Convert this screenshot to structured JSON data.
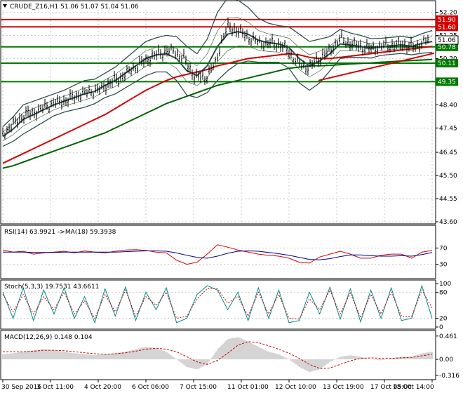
{
  "chart_data": {
    "type": "line",
    "symbol_header": "CRUDE_Z16,H1  51.06 51.07 51.04 51.06",
    "price_panel": {
      "ylim": [
        43.6,
        52.3
      ],
      "y_ticks": [
        "52.20",
        "51.25",
        "50.30",
        "48.40",
        "47.45",
        "46.45",
        "45.50",
        "44.55",
        "43.60"
      ],
      "current_price": "51.06",
      "levels": [
        {
          "value": 51.9,
          "label": "51.90",
          "color": "#d40000"
        },
        {
          "value": 51.6,
          "label": "51.60",
          "color": "#d40000"
        },
        {
          "value": 50.78,
          "label": "50.78",
          "color": "#007a00"
        },
        {
          "value": 50.11,
          "label": "50.11",
          "color": "#007a00"
        },
        {
          "value": 49.35,
          "label": "49.35",
          "color": "#007a00"
        }
      ],
      "trendlines": [
        {
          "x": [
            445,
            608
          ],
          "y": [
            49.4,
            50.52
          ],
          "color": "#d40000"
        }
      ],
      "close_series": {
        "x": [
          0,
          15,
          30,
          45,
          60,
          75,
          90,
          105,
          120,
          135,
          150,
          165,
          180,
          195,
          210,
          225,
          240,
          255,
          270,
          285,
          300,
          310,
          318,
          325,
          340,
          355,
          370,
          385,
          400,
          415,
          430,
          445,
          460,
          475,
          490,
          505,
          520,
          535,
          550,
          565,
          580,
          595,
          605
        ],
        "y": [
          47.2,
          47.6,
          48.0,
          48.1,
          48.3,
          48.5,
          48.6,
          48.8,
          48.9,
          49.0,
          49.3,
          49.5,
          49.8,
          50.1,
          50.4,
          50.55,
          50.6,
          50.3,
          49.6,
          49.5,
          50.1,
          51.2,
          51.6,
          51.55,
          51.3,
          51.0,
          50.9,
          50.95,
          50.7,
          50.1,
          49.9,
          50.3,
          50.6,
          51.1,
          50.9,
          50.8,
          50.7,
          50.8,
          50.85,
          50.9,
          50.75,
          51.0,
          51.06
        ]
      },
      "ma_series": [
        {
          "name": "",
          "color": "#d40000",
          "y": [
            46.0,
            46.2,
            46.4,
            46.6,
            46.8,
            47.0,
            47.2,
            47.4,
            47.6,
            47.8,
            48.0,
            48.25,
            48.5,
            48.75,
            49.0,
            49.2,
            49.4,
            49.55,
            49.65,
            49.75,
            49.85,
            50.0,
            50.1,
            50.2,
            50.3,
            50.35,
            50.4,
            50.45,
            50.5,
            50.45,
            50.35,
            50.3,
            50.3,
            50.35,
            50.4,
            50.45,
            50.5,
            50.55,
            50.6,
            50.65,
            50.7,
            50.75,
            50.8
          ]
        },
        {
          "name": "",
          "color": "#006400",
          "y": [
            45.8,
            45.9,
            46.05,
            46.2,
            46.35,
            46.5,
            46.65,
            46.8,
            46.95,
            47.1,
            47.25,
            47.45,
            47.65,
            47.85,
            48.05,
            48.25,
            48.45,
            48.6,
            48.75,
            48.9,
            49.05,
            49.2,
            49.3,
            49.4,
            49.5,
            49.6,
            49.7,
            49.8,
            49.9,
            49.95,
            50.0,
            50.0,
            50.02,
            50.05,
            50.08,
            50.1,
            50.12,
            50.15,
            50.17,
            50.2,
            50.22,
            50.24,
            50.26
          ]
        },
        {
          "name": "",
          "color": "#2f4f4f",
          "y": [
            47.1,
            47.4,
            47.8,
            48.0,
            48.2,
            48.4,
            48.55,
            48.7,
            48.85,
            48.95,
            49.2,
            49.4,
            49.7,
            50.0,
            50.3,
            50.45,
            50.5,
            50.3,
            49.8,
            49.6,
            50.0,
            50.8,
            51.3,
            51.4,
            51.3,
            51.05,
            50.95,
            50.9,
            50.75,
            50.3,
            50.0,
            50.2,
            50.5,
            50.9,
            50.85,
            50.8,
            50.72,
            50.78,
            50.82,
            50.86,
            50.8,
            50.92,
            51.0
          ]
        }
      ],
      "bollinger_width": [
        0.4,
        0.5,
        0.6,
        0.55,
        0.5,
        0.45,
        0.45,
        0.5,
        0.55,
        0.5,
        0.5,
        0.55,
        0.6,
        0.65,
        0.7,
        0.7,
        0.75,
        0.9,
        1.0,
        0.9,
        1.1,
        1.4,
        1.5,
        1.3,
        1.1,
        0.9,
        0.8,
        0.75,
        0.85,
        1.0,
        1.0,
        0.9,
        0.7,
        0.6,
        0.5,
        0.45,
        0.4,
        0.35,
        0.35,
        0.35,
        0.35,
        0.4,
        0.45
      ]
    },
    "rsi_panel": {
      "label": "RSI(14) 63.9921 ->MA(18) 59.3938",
      "ylim": [
        0,
        100
      ],
      "y_ticks": [
        "70",
        "30"
      ],
      "levels": [
        70,
        30
      ],
      "rsi": [
        65,
        60,
        62,
        55,
        58,
        60,
        62,
        58,
        63,
        60,
        58,
        62,
        65,
        66,
        64,
        60,
        58,
        40,
        30,
        35,
        55,
        78,
        72,
        65,
        60,
        55,
        52,
        50,
        45,
        35,
        33,
        48,
        55,
        62,
        55,
        45,
        45,
        52,
        55,
        55,
        45,
        60,
        64
      ],
      "ma": [
        60,
        60,
        60,
        59,
        59,
        59,
        60,
        60,
        60,
        60,
        60,
        60,
        61,
        62,
        63,
        63,
        62,
        58,
        52,
        47,
        45,
        50,
        57,
        62,
        63,
        62,
        59,
        56,
        52,
        47,
        42,
        41,
        44,
        49,
        53,
        53,
        51,
        50,
        50,
        51,
        50,
        54,
        59
      ]
    },
    "stoch_panel": {
      "label": "Stoch(5,3,3) 19.7531 43.6611",
      "ylim": [
        0,
        100
      ],
      "y_ticks": [
        "100",
        "80",
        "20",
        "0"
      ],
      "levels": [
        80,
        20
      ],
      "main": [
        80,
        20,
        90,
        15,
        85,
        30,
        90,
        20,
        70,
        10,
        88,
        25,
        92,
        15,
        80,
        40,
        90,
        10,
        20,
        75,
        95,
        85,
        40,
        80,
        15,
        90,
        20,
        85,
        10,
        15,
        80,
        30,
        92,
        18,
        88,
        12,
        85,
        20,
        90,
        15,
        20,
        95,
        20
      ],
      "signal": [
        75,
        35,
        75,
        30,
        70,
        40,
        80,
        30,
        60,
        20,
        75,
        35,
        85,
        25,
        70,
        50,
        80,
        20,
        25,
        65,
        88,
        88,
        55,
        70,
        25,
        80,
        30,
        75,
        20,
        18,
        65,
        40,
        85,
        30,
        78,
        22,
        75,
        30,
        80,
        25,
        25,
        85,
        44
      ]
    },
    "macd_panel": {
      "label": "MACD(12,26,9) 0.148 0.104",
      "ylim": [
        -0.36,
        0.5
      ],
      "y_ticks": [
        "0.461",
        "0.00",
        "-0.316"
      ],
      "hist": [
        0.1,
        0.12,
        0.15,
        0.18,
        0.2,
        0.18,
        0.15,
        0.12,
        0.1,
        0.08,
        0.1,
        0.12,
        0.15,
        0.2,
        0.25,
        0.22,
        0.15,
        0.0,
        -0.15,
        -0.2,
        -0.1,
        0.2,
        0.4,
        0.44,
        0.35,
        0.25,
        0.15,
        0.1,
        0.0,
        -0.15,
        -0.25,
        -0.2,
        -0.05,
        0.05,
        0.08,
        0.05,
        0.0,
        -0.02,
        0.02,
        0.05,
        0.05,
        0.12,
        0.15
      ],
      "signal": [
        0.15,
        0.15,
        0.15,
        0.16,
        0.18,
        0.18,
        0.17,
        0.15,
        0.13,
        0.11,
        0.1,
        0.11,
        0.13,
        0.16,
        0.2,
        0.22,
        0.2,
        0.15,
        0.05,
        -0.05,
        -0.1,
        -0.02,
        0.12,
        0.28,
        0.35,
        0.33,
        0.27,
        0.2,
        0.12,
        0.02,
        -0.1,
        -0.18,
        -0.17,
        -0.1,
        -0.03,
        0.02,
        0.03,
        0.02,
        0.02,
        0.03,
        0.04,
        0.07,
        0.1
      ]
    },
    "x_ticks": [
      "30 Sep 2016",
      "3 Oct 11:00",
      "4 Oct 20:00",
      "6 Oct 06:00",
      "7 Oct 15:00",
      "11 Oct 01:00",
      "12 Oct 10:00",
      "13 Oct 19:00",
      "17 Oct 05:00",
      "18 Oct 14:00"
    ]
  }
}
